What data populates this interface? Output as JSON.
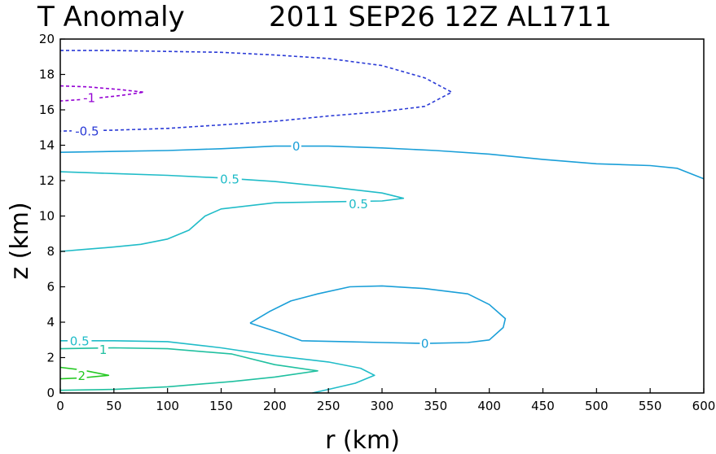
{
  "chart_data": {
    "type": "contour",
    "title": {
      "left": "T Anomaly",
      "right": "2011  SEP26  12Z   AL1711"
    },
    "xlabel": "r (km)",
    "ylabel": "z (km)",
    "xlim": [
      0,
      600
    ],
    "ylim": [
      0,
      20
    ],
    "xticks": [
      0,
      50,
      100,
      150,
      200,
      250,
      300,
      350,
      400,
      450,
      500,
      550,
      600
    ],
    "yticks": [
      0,
      2,
      4,
      6,
      8,
      10,
      12,
      14,
      16,
      18,
      20
    ],
    "grid": false,
    "contours": [
      {
        "level": -1,
        "label": "-1",
        "color": "#9400d3",
        "dashed": true,
        "points": [
          [
            0,
            17.35
          ],
          [
            25,
            17.3
          ],
          [
            55,
            17.15
          ],
          [
            78,
            17.0
          ],
          [
            55,
            16.8
          ],
          [
            25,
            16.6
          ],
          [
            0,
            16.5
          ]
        ],
        "labels": [
          {
            "x": 27,
            "y": 16.7
          }
        ]
      },
      {
        "level": -0.5,
        "label": "-0.5",
        "color": "#2a3ad6",
        "dashed": true,
        "points": [
          [
            0,
            19.35
          ],
          [
            50,
            19.35
          ],
          [
            100,
            19.3
          ],
          [
            150,
            19.25
          ],
          [
            200,
            19.1
          ],
          [
            250,
            18.9
          ],
          [
            300,
            18.5
          ],
          [
            340,
            17.8
          ],
          [
            365,
            17.0
          ],
          [
            340,
            16.2
          ],
          [
            300,
            15.9
          ],
          [
            250,
            15.65
          ],
          [
            200,
            15.35
          ],
          [
            150,
            15.15
          ],
          [
            100,
            14.95
          ],
          [
            50,
            14.85
          ],
          [
            0,
            14.8
          ]
        ],
        "labels": [
          {
            "x": 25,
            "y": 14.8
          }
        ]
      },
      {
        "level": 0,
        "label": "0",
        "color": "#1a9fd8",
        "dashed": false,
        "points": [
          [
            0,
            13.6
          ],
          [
            50,
            13.65
          ],
          [
            100,
            13.7
          ],
          [
            150,
            13.8
          ],
          [
            200,
            13.95
          ],
          [
            250,
            13.95
          ],
          [
            300,
            13.85
          ],
          [
            350,
            13.7
          ],
          [
            400,
            13.5
          ],
          [
            450,
            13.2
          ],
          [
            500,
            12.95
          ],
          [
            550,
            12.85
          ],
          [
            575,
            12.7
          ],
          [
            600,
            12.1
          ]
        ],
        "labels": [
          {
            "x": 220,
            "y": 13.95
          }
        ]
      },
      {
        "level": 0,
        "label": "0",
        "color": "#1a9fd8",
        "dashed": false,
        "points": [
          [
            177,
            3.95
          ],
          [
            195,
            4.6
          ],
          [
            215,
            5.2
          ],
          [
            240,
            5.6
          ],
          [
            270,
            6.0
          ],
          [
            300,
            6.05
          ],
          [
            340,
            5.9
          ],
          [
            380,
            5.6
          ],
          [
            400,
            5.0
          ],
          [
            415,
            4.2
          ],
          [
            413,
            3.7
          ],
          [
            400,
            3.0
          ],
          [
            380,
            2.85
          ],
          [
            340,
            2.8
          ],
          [
            300,
            2.85
          ],
          [
            265,
            2.9
          ],
          [
            225,
            2.95
          ],
          [
            205,
            3.4
          ],
          [
            177,
            3.95
          ]
        ],
        "labels": [
          {
            "x": 340,
            "y": 2.8
          }
        ]
      },
      {
        "level": 0.5,
        "label": "0.5",
        "color": "#20bcc8",
        "dashed": false,
        "points": [
          [
            0,
            12.5
          ],
          [
            50,
            12.4
          ],
          [
            100,
            12.3
          ],
          [
            150,
            12.15
          ],
          [
            200,
            11.95
          ],
          [
            250,
            11.65
          ],
          [
            300,
            11.3
          ],
          [
            320,
            11.0
          ],
          [
            300,
            10.85
          ],
          [
            250,
            10.8
          ],
          [
            200,
            10.75
          ],
          [
            150,
            10.4
          ],
          [
            135,
            10.0
          ],
          [
            120,
            9.2
          ],
          [
            100,
            8.7
          ],
          [
            75,
            8.4
          ],
          [
            50,
            8.25
          ],
          [
            20,
            8.1
          ],
          [
            0,
            8.0
          ]
        ],
        "labels": [
          {
            "x": 158,
            "y": 12.1
          },
          {
            "x": 278,
            "y": 10.7
          }
        ]
      },
      {
        "level": 0.5,
        "label": "0.5",
        "color": "#20bcc8",
        "dashed": false,
        "points": [
          [
            0,
            2.95
          ],
          [
            50,
            2.95
          ],
          [
            100,
            2.9
          ],
          [
            150,
            2.55
          ],
          [
            200,
            2.1
          ],
          [
            250,
            1.75
          ],
          [
            280,
            1.4
          ],
          [
            293,
            1.0
          ],
          [
            275,
            0.55
          ],
          [
            250,
            0.2
          ],
          [
            235,
            0.0
          ]
        ],
        "labels": [
          {
            "x": 18,
            "y": 2.95
          }
        ]
      },
      {
        "level": 1,
        "label": "1",
        "color": "#20c0a0",
        "dashed": false,
        "points": [
          [
            0,
            2.5
          ],
          [
            50,
            2.55
          ],
          [
            100,
            2.5
          ],
          [
            160,
            2.2
          ],
          [
            200,
            1.6
          ],
          [
            240,
            1.25
          ],
          [
            200,
            0.9
          ],
          [
            160,
            0.65
          ],
          [
            100,
            0.35
          ],
          [
            50,
            0.2
          ],
          [
            0,
            0.15
          ]
        ],
        "labels": [
          {
            "x": 40,
            "y": 2.45
          }
        ]
      },
      {
        "level": 2,
        "label": "2",
        "color": "#22c820",
        "dashed": false,
        "points": [
          [
            0,
            1.45
          ],
          [
            20,
            1.3
          ],
          [
            45,
            1.0
          ],
          [
            20,
            0.85
          ],
          [
            0,
            0.8
          ]
        ],
        "labels": [
          {
            "x": 20,
            "y": 1.0
          }
        ]
      }
    ]
  }
}
